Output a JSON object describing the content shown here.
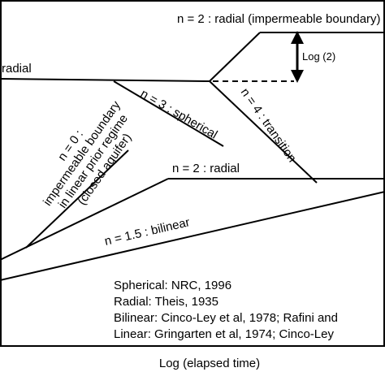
{
  "labels": {
    "radial_top": "n = 2 : radial (impermeable boundary)",
    "radial_left": "radial",
    "log2": "Log (2)",
    "spherical": "n = 3 : spherical",
    "transition": "n = 4 : transition",
    "closed_line1": "n = 0 :",
    "closed_line2": "impermeable boundary",
    "closed_line3": "in linear prior regime",
    "closed_line4": "(closed aquifer)",
    "radial_mid": "n = 2 : radial",
    "bilinear": "n = 1.5 : bilinear",
    "x_axis": "Log (elapsed time)"
  },
  "references": [
    "Spherical: NRC, 1996",
    "Radial: Theis, 1935",
    "Bilinear: Cinco-Ley et al, 1978; Rafini and",
    "Linear: Gringarten et al, 1974; Cinco-Ley"
  ]
}
